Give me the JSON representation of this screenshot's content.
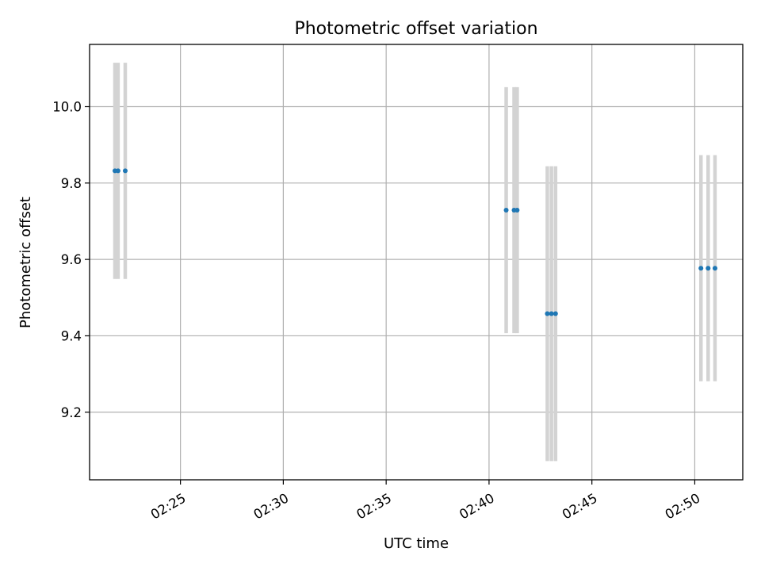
{
  "chart_data": {
    "type": "scatter",
    "title": "Photometric offset variation",
    "xlabel": "UTC time",
    "ylabel": "Photometric offset",
    "xlim": [
      "02:20:35",
      "02:52:20"
    ],
    "ylim": [
      9.023,
      10.163
    ],
    "x_ticks": [
      "02:25",
      "02:30",
      "02:35",
      "02:40",
      "02:45",
      "02:50"
    ],
    "y_ticks": [
      9.2,
      9.4,
      9.6,
      9.8,
      10.0
    ],
    "y_tick_labels": [
      "9.2",
      "9.4",
      "9.6",
      "9.8",
      "10.0"
    ],
    "grid": true,
    "colors": {
      "marker": "#1f77b4",
      "errorbar": "#d3d3d3"
    },
    "series": [
      {
        "points": [
          {
            "x": "02:21:49",
            "y": 9.832,
            "yerr": 0.283
          },
          {
            "x": "02:21:58",
            "y": 9.832,
            "yerr": 0.283
          },
          {
            "x": "02:22:19",
            "y": 9.832,
            "yerr": 0.283
          },
          {
            "x": "02:40:50",
            "y": 9.729,
            "yerr": 0.322
          },
          {
            "x": "02:41:13",
            "y": 9.729,
            "yerr": 0.322
          },
          {
            "x": "02:41:22",
            "y": 9.729,
            "yerr": 0.322
          },
          {
            "x": "02:42:50",
            "y": 9.458,
            "yerr": 0.386
          },
          {
            "x": "02:43:02",
            "y": 9.458,
            "yerr": 0.386
          },
          {
            "x": "02:43:14",
            "y": 9.458,
            "yerr": 0.386
          },
          {
            "x": "02:50:18",
            "y": 9.577,
            "yerr": 0.296
          },
          {
            "x": "02:50:39",
            "y": 9.577,
            "yerr": 0.296
          },
          {
            "x": "02:50:59",
            "y": 9.577,
            "yerr": 0.296
          }
        ]
      }
    ]
  }
}
